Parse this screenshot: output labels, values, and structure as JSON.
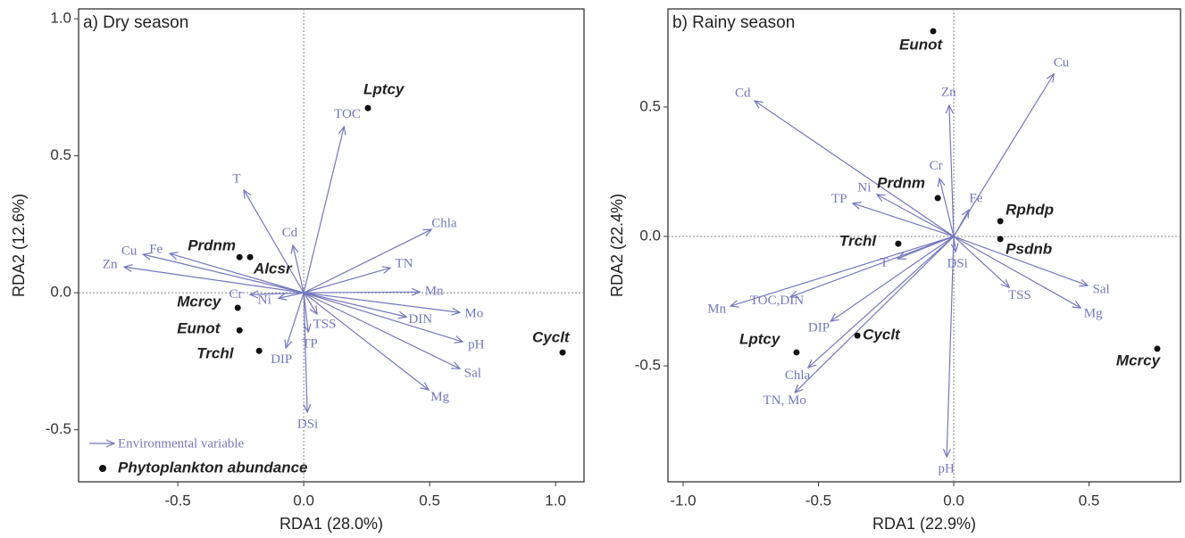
{
  "chart_data": [
    {
      "type": "biplot",
      "title": "a) Dry season",
      "xlabel": "RDA1 (28.0%)",
      "ylabel": "RDA2 (12.6%)",
      "xlim": [
        -0.894,
        1.113
      ],
      "ylim": [
        -0.69,
        1.036
      ],
      "xticks": [
        -0.5,
        {
          "value": 0,
          "label": "0.0"
        },
        0.5,
        {
          "value": 1,
          "label": "1.0"
        }
      ],
      "yticks": [
        -0.5,
        {
          "value": 0,
          "label": "0.0"
        },
        0.5,
        {
          "value": 1,
          "label": "1.0"
        }
      ],
      "arrow_color": "#7478bd",
      "point_color": "#111111",
      "legend": [
        "Environmental variable",
        "Phytoplankton abundance"
      ],
      "arrows": [
        {
          "name": "T",
          "x": -0.238,
          "y": 0.375
        },
        {
          "name": "TOC",
          "x": 0.16,
          "y": 0.606
        },
        {
          "name": "Cu",
          "x": -0.638,
          "y": 0.14
        },
        {
          "name": "Fe",
          "x": -0.532,
          "y": 0.143
        },
        {
          "name": "Zn",
          "x": -0.713,
          "y": 0.094
        },
        {
          "name": "Cd",
          "x": -0.043,
          "y": 0.173
        },
        {
          "name": "Chla",
          "x": 0.507,
          "y": 0.231
        },
        {
          "name": "TN",
          "x": 0.344,
          "y": 0.091
        },
        {
          "name": "Mn",
          "x": 0.461,
          "y": 0.003
        },
        {
          "name": "Mo",
          "x": 0.62,
          "y": -0.072
        },
        {
          "name": "DIN",
          "x": 0.408,
          "y": -0.088
        },
        {
          "name": "pH",
          "x": 0.631,
          "y": -0.179
        },
        {
          "name": "Sal",
          "x": 0.62,
          "y": -0.277
        },
        {
          "name": "Mg",
          "x": 0.496,
          "y": -0.355
        },
        {
          "name": "DSi",
          "x": 0.014,
          "y": -0.436
        },
        {
          "name": "TSS",
          "x": 0.053,
          "y": -0.078
        },
        {
          "name": "TP",
          "x": 0.018,
          "y": -0.143
        },
        {
          "name": "DIP",
          "x": -0.071,
          "y": -0.202
        },
        {
          "name": "Cr",
          "x": -0.213,
          "y": -0.007
        },
        {
          "name": "Ni",
          "x": -0.1,
          "y": -0.02
        }
      ],
      "points": [
        {
          "name": "Lptcy",
          "x": 0.255,
          "y": 0.674
        },
        {
          "name": "Prdnm",
          "x": -0.255,
          "y": 0.13
        },
        {
          "name": "Alcsr",
          "x": -0.213,
          "y": 0.13
        },
        {
          "name": "Mcrcy",
          "x": -0.262,
          "y": -0.055
        },
        {
          "name": "Eunot",
          "x": -0.255,
          "y": -0.137
        },
        {
          "name": "Trchl",
          "x": -0.177,
          "y": -0.212
        },
        {
          "name": "Cyclt",
          "x": 1.028,
          "y": -0.218
        }
      ]
    },
    {
      "type": "biplot",
      "title": "b) Rainy season",
      "xlabel": "RDA1 (22.9%)",
      "ylabel": "RDA2 (22.4%)",
      "xlim": [
        -1.056,
        0.838
      ],
      "ylim": [
        -0.948,
        0.879
      ],
      "xticks": [
        {
          "value": -1,
          "label": "-1.0"
        },
        -0.5,
        {
          "value": 0,
          "label": "0.0"
        },
        0.5
      ],
      "yticks": [
        -0.5,
        {
          "value": 0,
          "label": "0.0"
        },
        0.5
      ],
      "arrow_color": "#7478bd",
      "point_color": "#111111",
      "arrows": [
        {
          "name": "Cu",
          "x": 0.37,
          "y": 0.628
        },
        {
          "name": "Cd",
          "x": -0.736,
          "y": 0.524
        },
        {
          "name": "Zn",
          "x": -0.017,
          "y": 0.507
        },
        {
          "name": "Cr",
          "x": -0.053,
          "y": 0.224
        },
        {
          "name": "Ni",
          "x": -0.284,
          "y": 0.162
        },
        {
          "name": "TP",
          "x": -0.373,
          "y": 0.128
        },
        {
          "name": "Fe",
          "x": 0.056,
          "y": 0.103
        },
        {
          "name": "T",
          "x": -0.208,
          "y": -0.086
        },
        {
          "name": "Mn",
          "x": -0.825,
          "y": -0.269
        },
        {
          "name": "TOC,DIN",
          "x": -0.604,
          "y": -0.234
        },
        {
          "name": "DIP",
          "x": -0.455,
          "y": -0.328
        },
        {
          "name": "Chla",
          "x": -0.538,
          "y": -0.507
        },
        {
          "name": "TN, Mo",
          "x": -0.587,
          "y": -0.603
        },
        {
          "name": "pH",
          "x": -0.026,
          "y": -0.852
        },
        {
          "name": "DSi",
          "x": 0.007,
          "y": -0.059
        },
        {
          "name": "TSS",
          "x": 0.205,
          "y": -0.197
        },
        {
          "name": "Sal",
          "x": 0.495,
          "y": -0.19
        },
        {
          "name": "Mg",
          "x": 0.469,
          "y": -0.276
        }
      ],
      "points": [
        {
          "name": "Eunot",
          "x": -0.076,
          "y": 0.793
        },
        {
          "name": "Prdnm",
          "x": -0.059,
          "y": 0.148
        },
        {
          "name": "Rphdp",
          "x": 0.172,
          "y": 0.059
        },
        {
          "name": "Psdnb",
          "x": 0.172,
          "y": -0.01
        },
        {
          "name": "Trchl",
          "x": -0.205,
          "y": -0.028
        },
        {
          "name": "Cyclt",
          "x": -0.356,
          "y": -0.383
        },
        {
          "name": "Lptcy",
          "x": -0.581,
          "y": -0.448
        },
        {
          "name": "Mcrcy",
          "x": 0.752,
          "y": -0.434
        }
      ]
    }
  ]
}
